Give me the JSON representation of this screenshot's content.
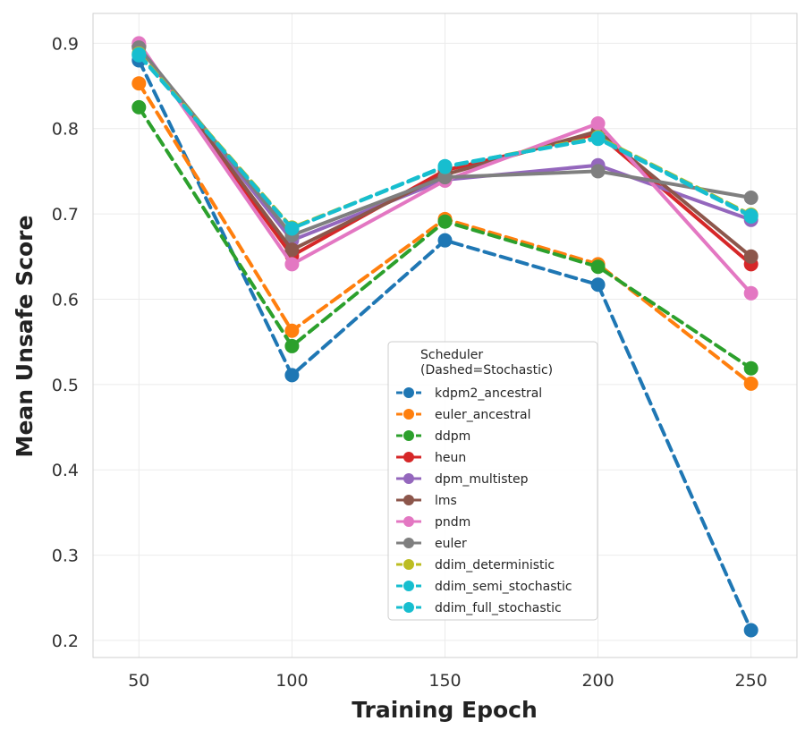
{
  "chart_data": {
    "type": "line",
    "title": "",
    "xlabel": "Training Epoch",
    "ylabel": "Mean Unsafe Score",
    "x": [
      50,
      100,
      150,
      200,
      250
    ],
    "x_ticks": [
      "50",
      "100",
      "150",
      "200",
      "250"
    ],
    "y_ticks": [
      "0.2",
      "0.3",
      "0.4",
      "0.5",
      "0.6",
      "0.7",
      "0.8",
      "0.9"
    ],
    "xlim": [
      35,
      265
    ],
    "ylim": [
      0.18,
      0.935
    ],
    "grid": true,
    "legend": {
      "title_line1": "Scheduler",
      "title_line2": "(Dashed=Stochastic)",
      "placement": "center-bottom"
    },
    "series": [
      {
        "name": "kdpm2_ancestral",
        "color": "#1f77b4",
        "dashed": true,
        "values": [
          0.88,
          0.511,
          0.669,
          0.617,
          0.212
        ]
      },
      {
        "name": "euler_ancestral",
        "color": "#ff7f0e",
        "dashed": true,
        "values": [
          0.853,
          0.563,
          0.694,
          0.641,
          0.501
        ]
      },
      {
        "name": "ddpm",
        "color": "#2ca02c",
        "dashed": true,
        "values": [
          0.825,
          0.545,
          0.691,
          0.638,
          0.519
        ]
      },
      {
        "name": "heun",
        "color": "#d62728",
        "dashed": false,
        "values": [
          0.897,
          0.651,
          0.751,
          0.794,
          0.641
        ]
      },
      {
        "name": "dpm_multistep",
        "color": "#9467bd",
        "dashed": false,
        "values": [
          0.896,
          0.669,
          0.74,
          0.757,
          0.693
        ]
      },
      {
        "name": "lms",
        "color": "#8c564b",
        "dashed": false,
        "values": [
          0.897,
          0.658,
          0.746,
          0.797,
          0.65
        ]
      },
      {
        "name": "pndm",
        "color": "#e377c2",
        "dashed": false,
        "values": [
          0.9,
          0.641,
          0.739,
          0.806,
          0.607
        ]
      },
      {
        "name": "euler",
        "color": "#7f7f7f",
        "dashed": false,
        "values": [
          0.895,
          0.675,
          0.743,
          0.75,
          0.719
        ]
      },
      {
        "name": "ddim_deterministic",
        "color": "#bcbd22",
        "dashed": true,
        "values": [
          0.888,
          0.684,
          0.755,
          0.79,
          0.699
        ]
      },
      {
        "name": "ddim_semi_stochastic",
        "color": "#17becf",
        "dashed": true,
        "values": [
          0.887,
          0.683,
          0.755,
          0.789,
          0.698
        ]
      },
      {
        "name": "ddim_full_stochastic",
        "color": "#17becf",
        "dashed": true,
        "values": [
          0.886,
          0.683,
          0.756,
          0.788,
          0.697
        ]
      }
    ]
  }
}
